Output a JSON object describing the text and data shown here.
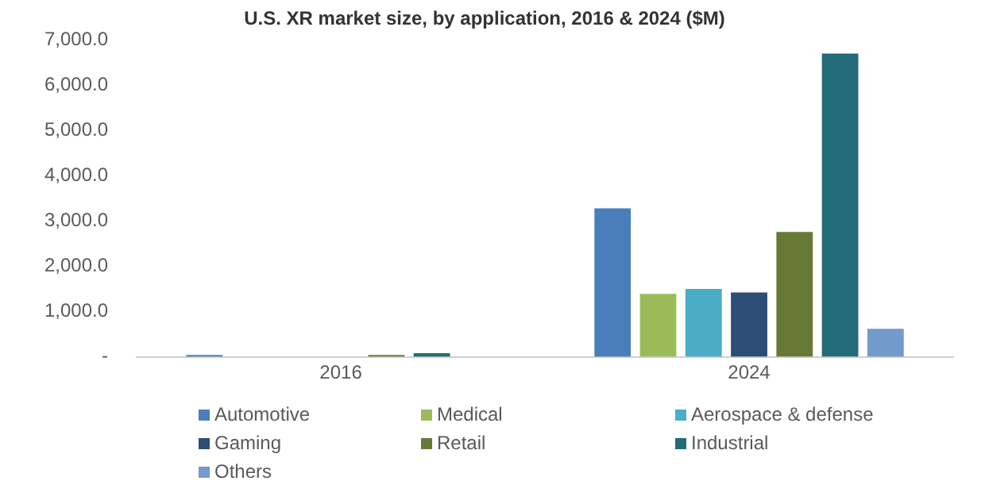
{
  "chart_data": {
    "type": "bar",
    "title": "U.S. XR market size, by application, 2016 & 2024 ($M)",
    "categories": [
      "2016",
      "2024"
    ],
    "series": [
      {
        "name": "Automotive",
        "color": "#4a7ebb",
        "values": [
          40,
          3280
        ]
      },
      {
        "name": "Medical",
        "color": "#9bbb59",
        "values": [
          0,
          1390
        ]
      },
      {
        "name": "Aerospace & defense",
        "color": "#4bacc6",
        "values": [
          0,
          1500
        ]
      },
      {
        "name": "Gaming",
        "color": "#2c4d75",
        "values": [
          0,
          1420
        ]
      },
      {
        "name": "Retail",
        "color": "#677a35",
        "values": [
          40,
          2760
        ]
      },
      {
        "name": "Industrial",
        "color": "#246b7a",
        "values": [
          80,
          6700
        ]
      },
      {
        "name": "Others",
        "color": "#729aca",
        "values": [
          0,
          620
        ]
      }
    ],
    "ylim": [
      0,
      7000
    ],
    "yticks": [
      {
        "value": 0,
        "label": "-"
      },
      {
        "value": 1000,
        "label": "1,000.0"
      },
      {
        "value": 2000,
        "label": "2,000.0"
      },
      {
        "value": 3000,
        "label": "3,000.0"
      },
      {
        "value": 4000,
        "label": "4,000.0"
      },
      {
        "value": 5000,
        "label": "5,000.0"
      },
      {
        "value": 6000,
        "label": "6,000.0"
      },
      {
        "value": 7000,
        "label": "7,000.0"
      }
    ],
    "grid": false,
    "legend": "bottom"
  }
}
